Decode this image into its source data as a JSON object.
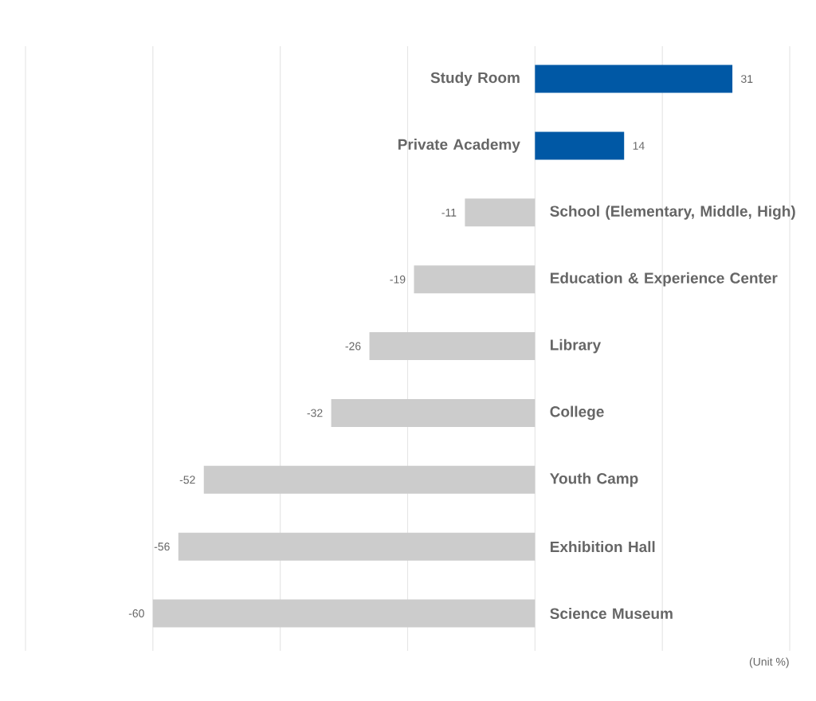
{
  "chart_data": {
    "type": "bar",
    "orientation": "horizontal",
    "categories": [
      "Study Room",
      "Private Academy",
      "**School** (Elementary, Middle, High)",
      "Education & Experience Center",
      "Library",
      "College",
      "Youth Camp",
      "Exhibition Hall",
      "Science Museum"
    ],
    "values": [
      31,
      14,
      -11,
      -19,
      -26,
      -32,
      -52,
      -56,
      -60
    ],
    "colors": [
      "#0058a5",
      "#0058a5",
      "#cccccc",
      "#cccccc",
      "#cccccc",
      "#cccccc",
      "#cccccc",
      "#cccccc",
      "#cccccc"
    ],
    "xlim": [
      -80,
      40
    ],
    "xticks": [
      {
        "value": -80,
        "label": null
      },
      {
        "value": -60,
        "label": null
      },
      {
        "value": -40,
        "label": null
      },
      {
        "value": -20,
        "label": null
      },
      {
        "value": 0,
        "label": null
      },
      {
        "value": 20,
        "label": null
      },
      {
        "value": 40,
        "label": null
      }
    ],
    "grid": "x",
    "data_labels": true,
    "annotations": [
      "(Unit %)"
    ]
  }
}
